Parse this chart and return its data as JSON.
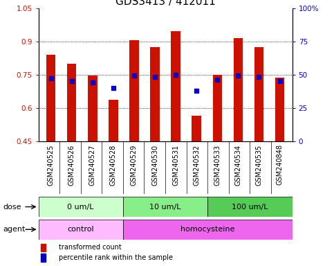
{
  "title": "GDS3413 / 412011",
  "samples": [
    "GSM240525",
    "GSM240526",
    "GSM240527",
    "GSM240528",
    "GSM240529",
    "GSM240530",
    "GSM240531",
    "GSM240532",
    "GSM240533",
    "GSM240534",
    "GSM240535",
    "GSM240848"
  ],
  "red_values": [
    0.84,
    0.8,
    0.745,
    0.635,
    0.905,
    0.875,
    0.945,
    0.565,
    0.75,
    0.915,
    0.875,
    0.735
  ],
  "blue_percentiles": [
    47,
    45,
    44,
    40,
    49,
    48,
    50,
    38,
    46,
    49,
    48,
    45
  ],
  "y_min": 0.45,
  "y_max": 1.05,
  "ytick_vals": [
    0.45,
    0.6,
    0.75,
    0.9,
    1.05
  ],
  "ytick_labels": [
    "0.45",
    "0.6",
    "0.75",
    "0.9",
    "1.05"
  ],
  "right_ytick_pcts": [
    0,
    25,
    50,
    75,
    100
  ],
  "right_ytick_labels": [
    "0",
    "25",
    "50",
    "75",
    "100%"
  ],
  "bar_color": "#cc1100",
  "dot_color": "#0000cc",
  "grid_vals": [
    0.6,
    0.75,
    0.9
  ],
  "dose_groups": [
    {
      "label": "0 um/L",
      "start": 0,
      "end": 4,
      "color": "#ccffcc"
    },
    {
      "label": "10 um/L",
      "start": 4,
      "end": 8,
      "color": "#88ee88"
    },
    {
      "label": "100 um/L",
      "start": 8,
      "end": 12,
      "color": "#55cc55"
    }
  ],
  "agent_groups": [
    {
      "label": "control",
      "start": 0,
      "end": 4,
      "color": "#ffbbff"
    },
    {
      "label": "homocysteine",
      "start": 4,
      "end": 12,
      "color": "#ee66ee"
    }
  ],
  "dose_label": "dose",
  "agent_label": "agent",
  "legend_red": "transformed count",
  "legend_blue": "percentile rank within the sample",
  "bar_width": 0.45,
  "title_fontsize": 11,
  "tick_fontsize": 7.5,
  "xlabel_fontsize": 7,
  "annot_fontsize": 8
}
